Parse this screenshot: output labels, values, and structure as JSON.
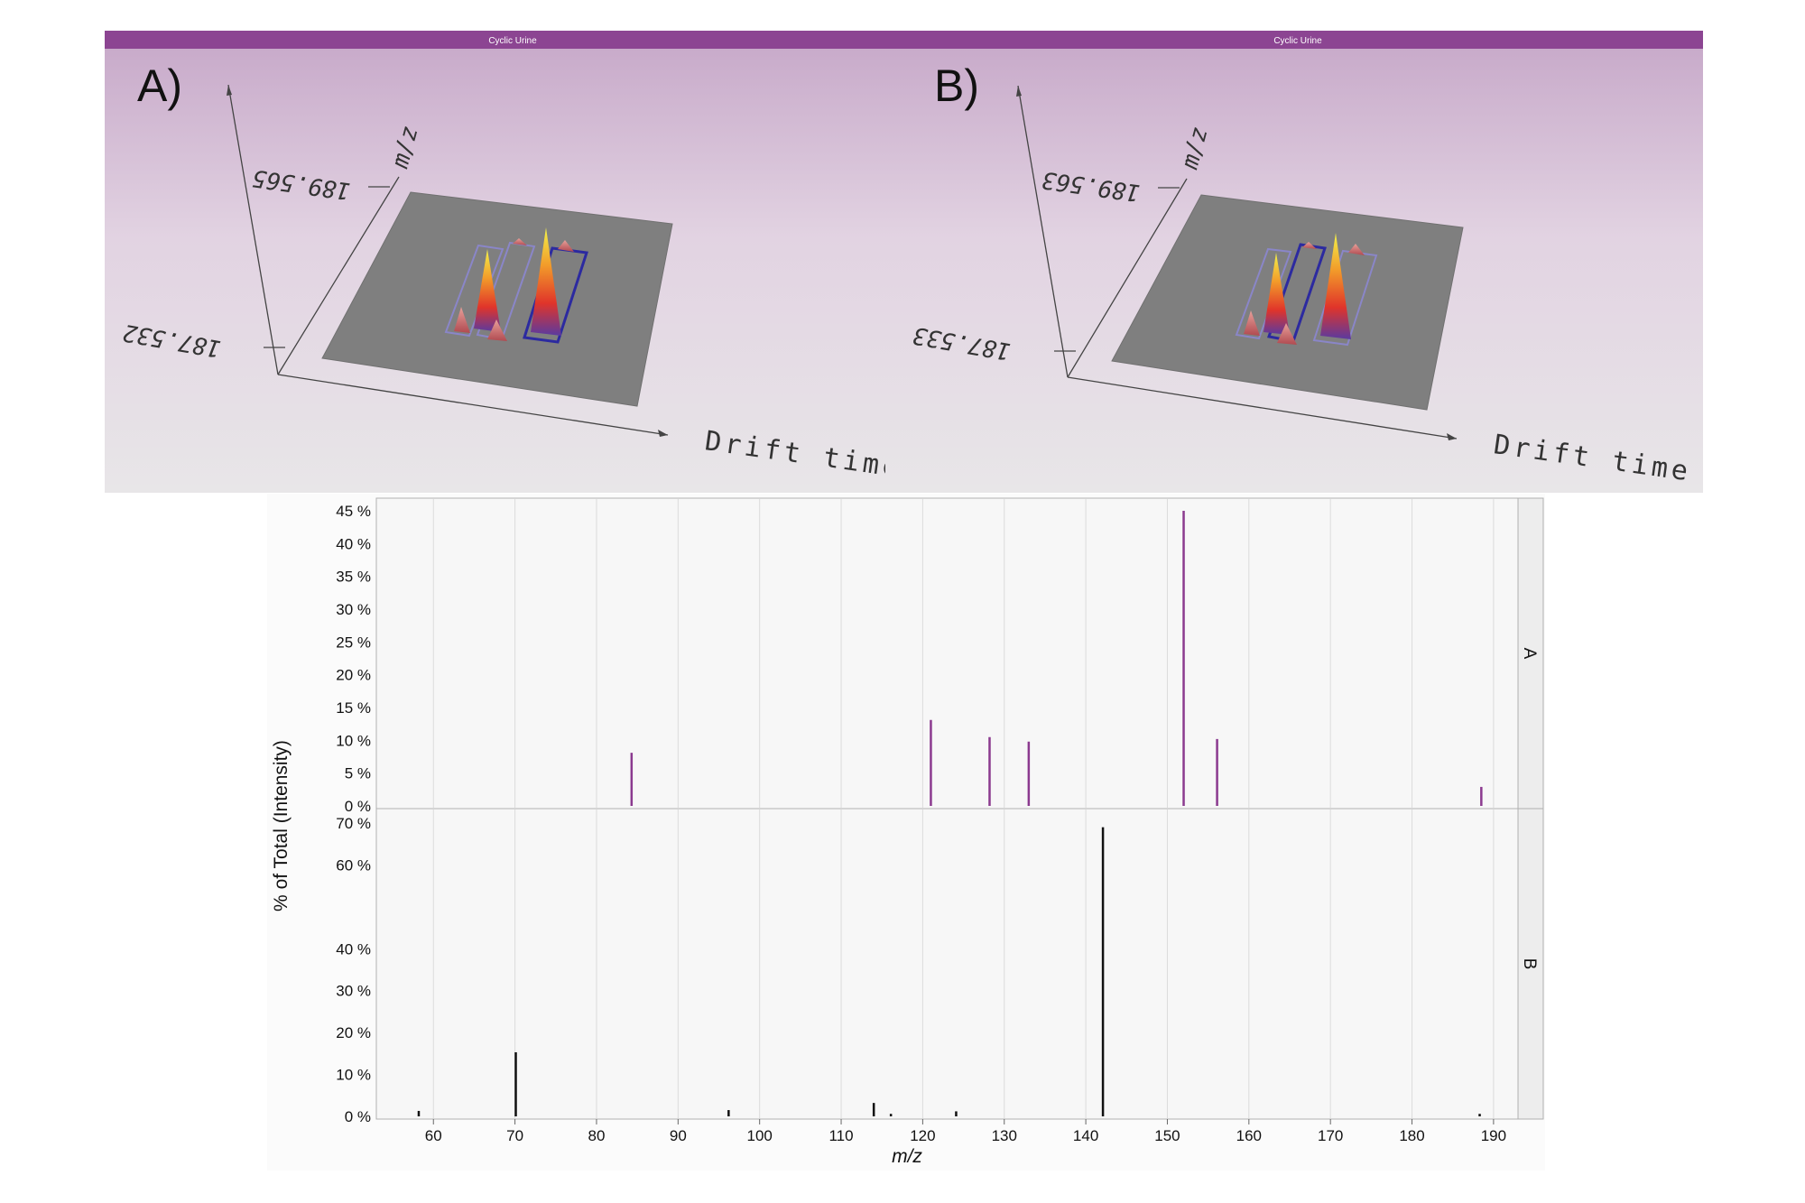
{
  "top": {
    "panels": [
      {
        "window_title": "Cyclic Urine",
        "label": "A)",
        "mz_high": "189.565",
        "mz_low": "187.532",
        "mz_axis_label": "m/z",
        "x_axis_label": "Drift time"
      },
      {
        "window_title": "Cyclic Urine",
        "label": "B)",
        "mz_high": "189.563",
        "mz_low": "187.533",
        "mz_axis_label": "m/z",
        "x_axis_label": "Drift time"
      }
    ],
    "colors": {
      "title_bar": "#8c4592",
      "sky_top": "#c6a7c8",
      "sky_bottom": "#e8e6e8",
      "floor": "#7f7f7f"
    }
  },
  "chart_data": {
    "type": "bar",
    "xlabel": "m/z",
    "ylabel": "% of Total (Intensity)",
    "xlim": [
      53,
      193
    ],
    "x_ticks": [
      60,
      70,
      80,
      90,
      100,
      110,
      120,
      130,
      140,
      150,
      160,
      170,
      180,
      190
    ],
    "facets": [
      {
        "name": "A",
        "color": "#8b3a8f",
        "ylim": [
          0,
          45
        ],
        "y_ticks": [
          "0 %",
          "5 %",
          "10 %",
          "15 %",
          "20 %",
          "25 %",
          "30 %",
          "35 %",
          "40 %",
          "45 %"
        ],
        "y_tick_values": [
          0,
          5,
          10,
          15,
          20,
          25,
          30,
          35,
          40,
          45
        ],
        "x": [
          84.3,
          121.0,
          128.2,
          133.0,
          152.0,
          156.1,
          188.5
        ],
        "values": [
          8.1,
          13.1,
          10.5,
          9.8,
          45.0,
          10.2,
          2.9
        ]
      },
      {
        "name": "B",
        "color": "#111111",
        "ylim": [
          0,
          70
        ],
        "y_ticks": [
          "0 %",
          "10 %",
          "20 %",
          "30 %",
          "40 %",
          "60 %",
          "70 %"
        ],
        "y_tick_values": [
          0,
          10,
          20,
          30,
          40,
          60,
          70
        ],
        "x": [
          58.2,
          70.1,
          96.2,
          114.0,
          116.1,
          124.1,
          142.1,
          188.3
        ],
        "values": [
          1.3,
          15.3,
          1.5,
          3.2,
          0.6,
          1.2,
          69.0,
          0.6
        ]
      }
    ]
  }
}
